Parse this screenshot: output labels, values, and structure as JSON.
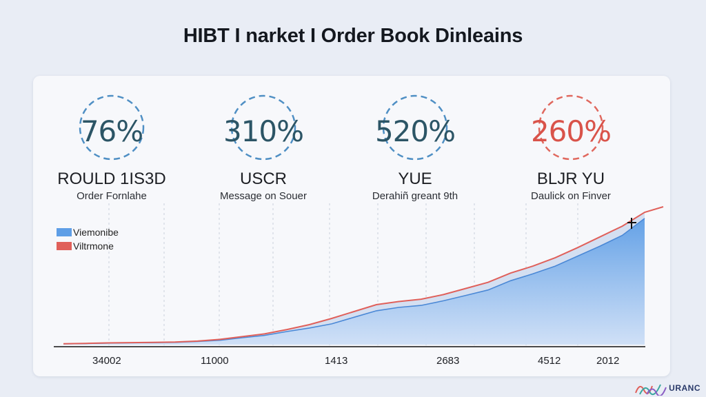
{
  "header": {
    "title": "HIBT I narket I Order Book Dinleains"
  },
  "kpis": [
    {
      "value": "76%",
      "label": "ROULD 1IS3D",
      "sublabel": "Order Fornlahe",
      "color": "#2c5566",
      "ring_color": "#4f8fc4"
    },
    {
      "value": "310%",
      "label": "USCR",
      "sublabel": "Message on Souer",
      "color": "#2c5566",
      "ring_color": "#4f8fc4"
    },
    {
      "value": "520%",
      "label": "YUE",
      "sublabel": "Derahiñ greant 9th",
      "color": "#2c5566",
      "ring_color": "#4f8fc4"
    },
    {
      "value": "260%",
      "label": "BLJR YU",
      "sublabel": "Daulick on Finver",
      "color": "#d9534a",
      "ring_color": "#e0685e"
    }
  ],
  "chart_data": {
    "type": "area",
    "x_tick_labels": [
      "34002",
      "11000",
      "1413",
      "2683",
      "4512",
      "2012"
    ],
    "series": [
      {
        "name": "Viemonibe",
        "color": "#5e9ee6",
        "values": [
          0.5,
          0.7,
          1.0,
          1.2,
          1.3,
          1.5,
          2.0,
          2.8,
          4.5,
          6.0,
          8.5,
          10.8,
          13.5,
          17.8,
          22.0,
          24.2,
          25.5,
          28.5,
          32.0,
          35.5,
          41.5,
          46.0,
          51.0,
          57.5,
          64.0,
          71.0,
          82.0
        ]
      },
      {
        "name": "Viltrmone",
        "color": "#e0605a",
        "values": [
          0.6,
          0.8,
          1.1,
          1.3,
          1.5,
          1.7,
          2.3,
          3.4,
          5.2,
          7.0,
          9.8,
          13.0,
          17.0,
          21.5,
          26.0,
          28.0,
          29.5,
          32.5,
          36.5,
          40.5,
          46.5,
          51.0,
          56.5,
          63.0,
          70.0,
          77.0,
          86.0
        ]
      }
    ],
    "legend_position": "top-left",
    "grid": "vertical dashed"
  },
  "logo": {
    "text": "URANC",
    "icon": "logo-mark-icon"
  }
}
